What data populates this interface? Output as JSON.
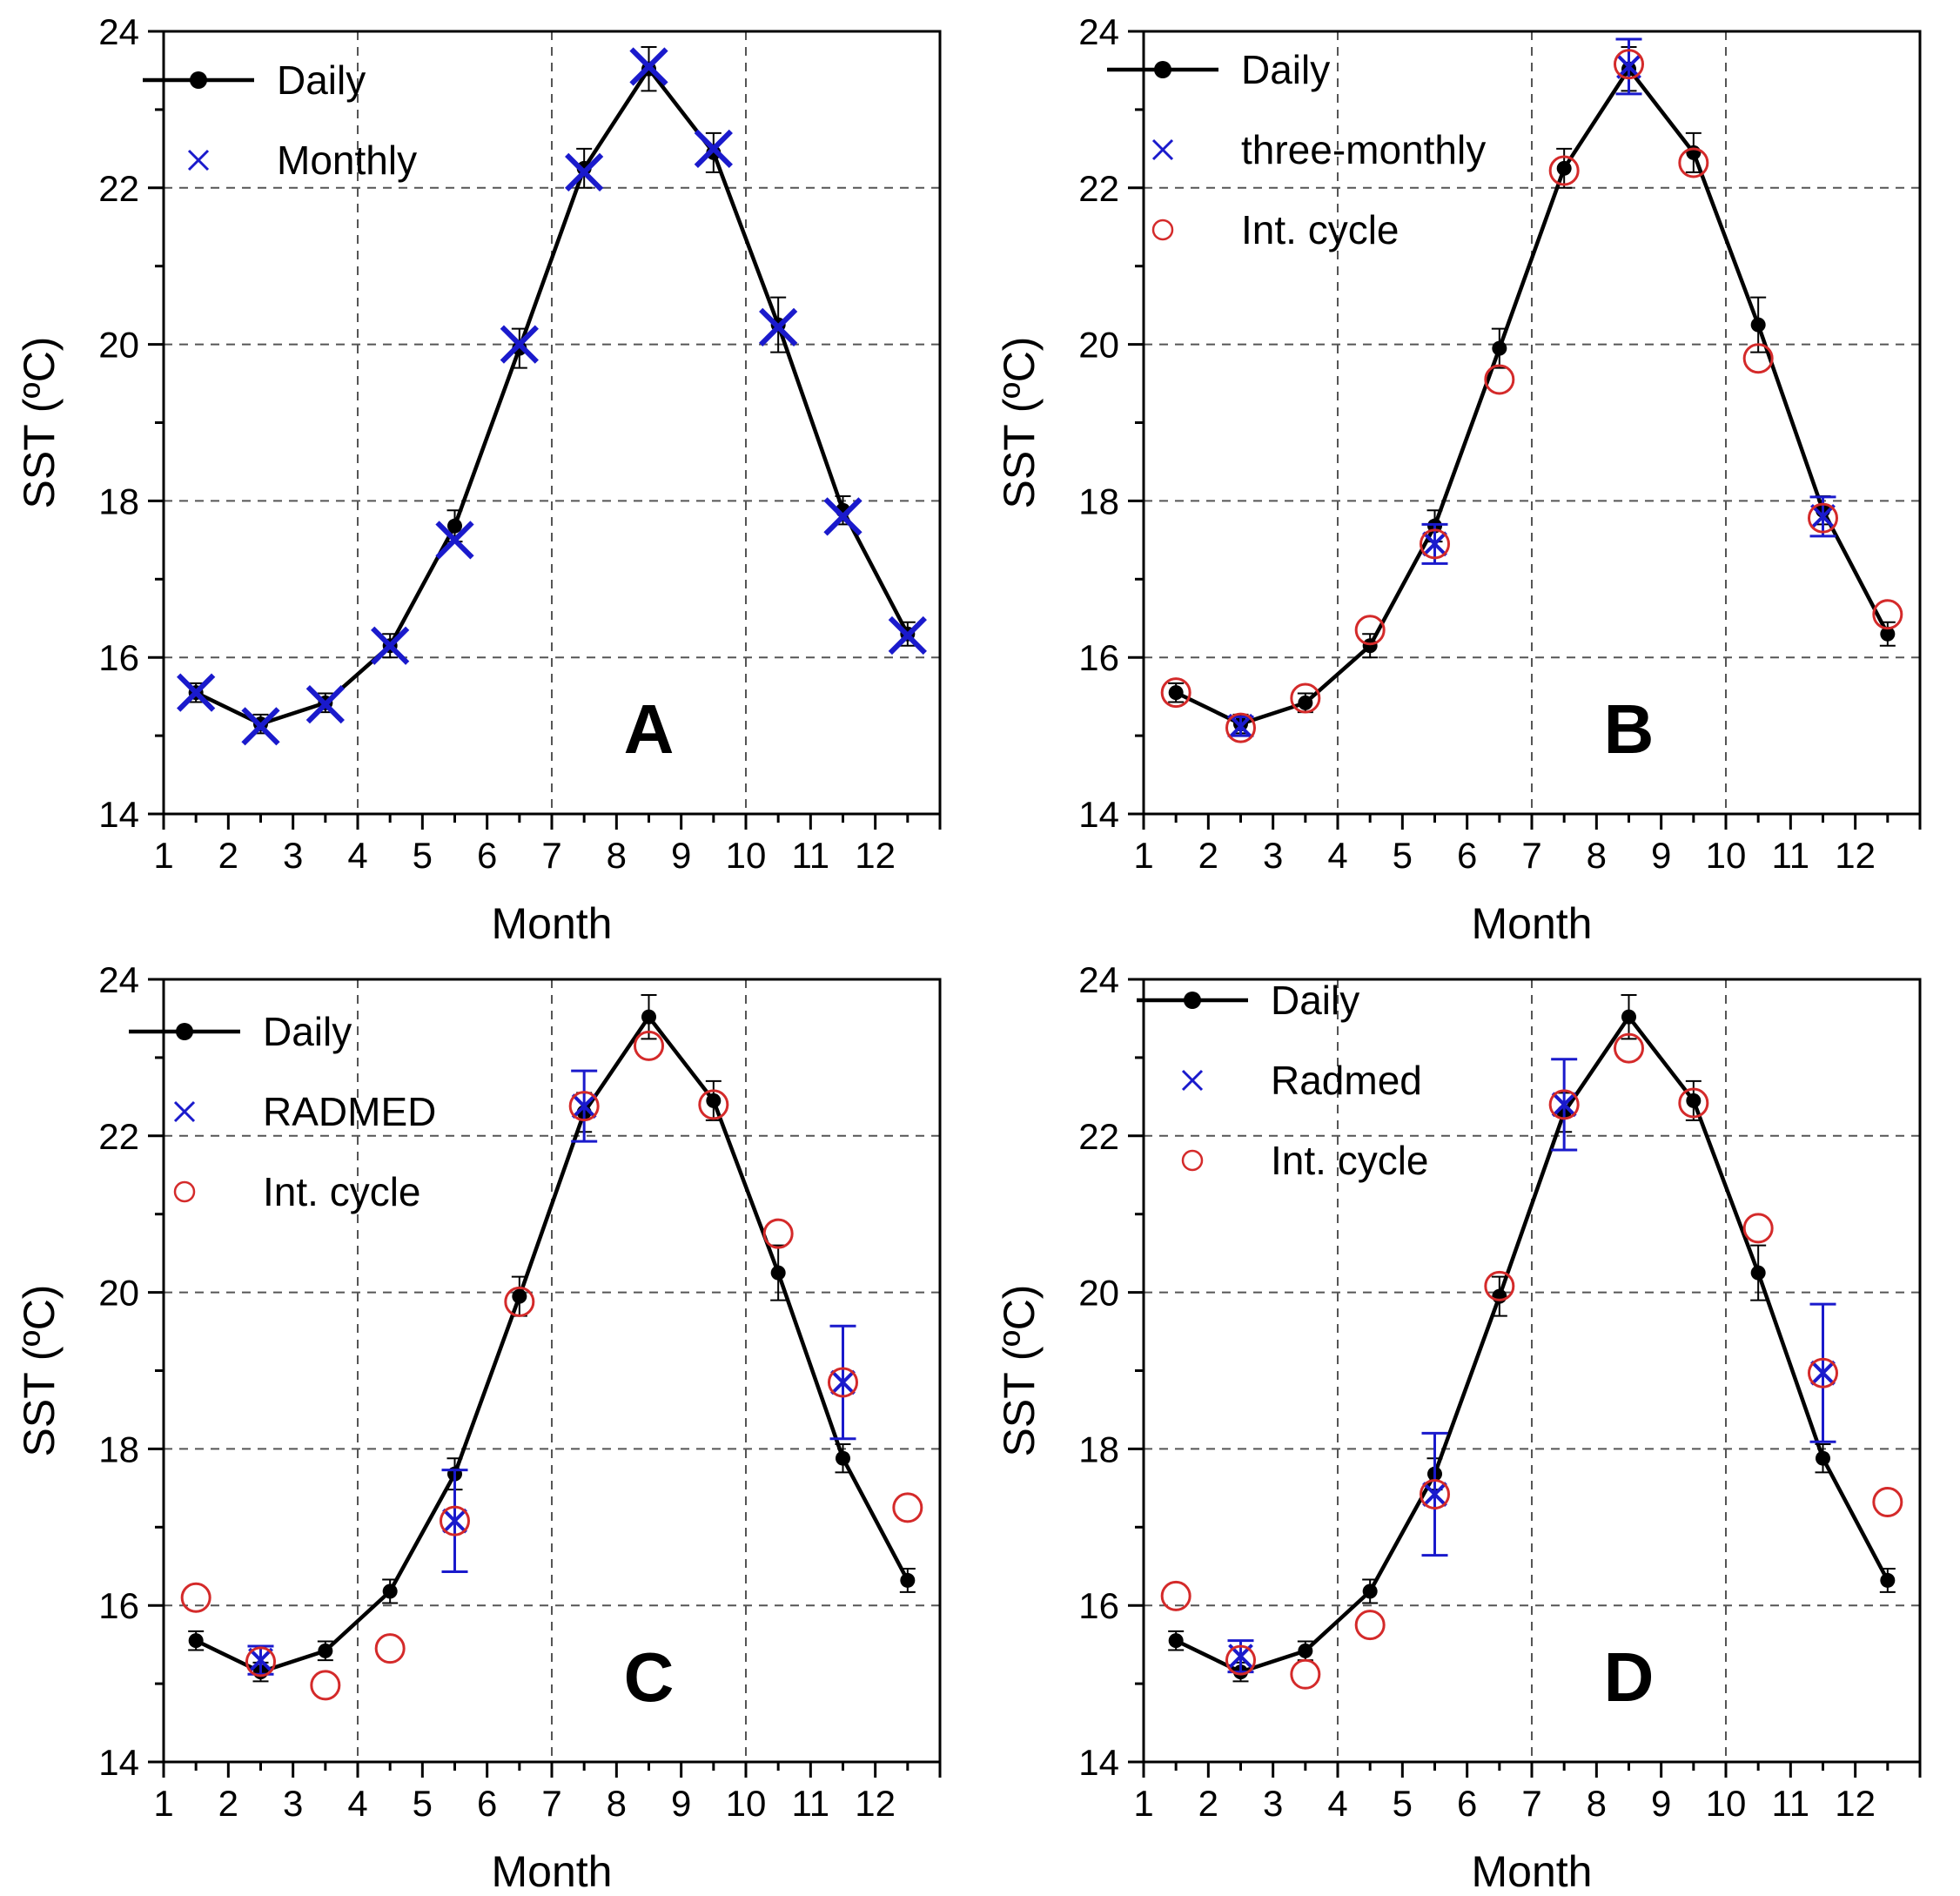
{
  "colors": {
    "daily": "#000000",
    "blue": "#1a1acc",
    "red": "#d42a2a",
    "grid": "#555555"
  },
  "chart_data": [
    {
      "type": "line",
      "panel_letter": "A",
      "xlabel": "Month",
      "ylabel": "SST (ºC)",
      "xlim": [
        1,
        13
      ],
      "ylim": [
        14,
        24
      ],
      "xticks": [
        "1",
        "2",
        "3",
        "4",
        "5",
        "6",
        "7",
        "8",
        "9",
        "10",
        "11",
        "12"
      ],
      "yticks": [
        "14",
        "16",
        "18",
        "20",
        "22",
        "24"
      ],
      "grid": "dashed at x=4,7,10 and y=16,18,20,22",
      "legend_position": "top-left",
      "series": [
        {
          "name": "Daily",
          "marker": "dot-line",
          "x": [
            1.5,
            2.5,
            3.5,
            4.5,
            5.5,
            6.5,
            7.5,
            8.5,
            9.5,
            10.5,
            11.5,
            12.5
          ],
          "y": [
            15.55,
            15.15,
            15.42,
            16.15,
            17.68,
            19.95,
            22.25,
            23.52,
            22.45,
            20.25,
            17.88,
            16.3
          ],
          "err": [
            0.12,
            0.12,
            0.12,
            0.15,
            0.2,
            0.25,
            0.25,
            0.28,
            0.25,
            0.35,
            0.18,
            0.15
          ]
        },
        {
          "name": "Monthly",
          "marker": "x",
          "x": [
            1.5,
            2.5,
            3.5,
            4.5,
            5.5,
            6.5,
            7.5,
            8.5,
            9.5,
            10.5,
            11.5,
            12.5
          ],
          "y": [
            15.55,
            15.12,
            15.4,
            16.15,
            17.5,
            20.0,
            22.2,
            23.55,
            22.5,
            20.22,
            17.8,
            16.28
          ]
        }
      ]
    },
    {
      "type": "line",
      "panel_letter": "B",
      "xlabel": "Month",
      "ylabel": "SST (ºC)",
      "xlim": [
        1,
        13
      ],
      "ylim": [
        14,
        24
      ],
      "xticks": [
        "1",
        "2",
        "3",
        "4",
        "5",
        "6",
        "7",
        "8",
        "9",
        "10",
        "11",
        "12"
      ],
      "yticks": [
        "14",
        "16",
        "18",
        "20",
        "22",
        "24"
      ],
      "grid": "dashed at x=4,7,10 and y=16,18,20,22",
      "legend_position": "top-left",
      "series": [
        {
          "name": "Daily",
          "marker": "dot-line",
          "x": [
            1.5,
            2.5,
            3.5,
            4.5,
            5.5,
            6.5,
            7.5,
            8.5,
            9.5,
            10.5,
            11.5,
            12.5
          ],
          "y": [
            15.55,
            15.15,
            15.42,
            16.15,
            17.68,
            19.95,
            22.25,
            23.52,
            22.45,
            20.25,
            17.88,
            16.3
          ],
          "err": [
            0.12,
            0.12,
            0.12,
            0.15,
            0.2,
            0.25,
            0.25,
            0.28,
            0.25,
            0.35,
            0.18,
            0.15
          ]
        },
        {
          "name": "three-monthly",
          "marker": "x",
          "x": [
            2.5,
            5.5,
            8.5,
            11.5
          ],
          "y": [
            15.12,
            17.45,
            23.55,
            17.8
          ],
          "err": [
            0.12,
            0.25,
            0.35,
            0.25
          ]
        },
        {
          "name": "Int. cycle",
          "marker": "circle",
          "x": [
            1.5,
            2.5,
            3.5,
            4.5,
            5.5,
            6.5,
            7.5,
            8.5,
            9.5,
            10.5,
            11.5,
            12.5
          ],
          "y": [
            15.55,
            15.1,
            15.48,
            16.35,
            17.45,
            19.55,
            22.22,
            23.58,
            22.32,
            19.82,
            17.78,
            16.55
          ]
        }
      ]
    },
    {
      "type": "line",
      "panel_letter": "C",
      "xlabel": "Month",
      "ylabel": "SST (ºC)",
      "xlim": [
        1,
        13
      ],
      "ylim": [
        14,
        24
      ],
      "xticks": [
        "1",
        "2",
        "3",
        "4",
        "5",
        "6",
        "7",
        "8",
        "9",
        "10",
        "11",
        "12"
      ],
      "yticks": [
        "14",
        "16",
        "18",
        "20",
        "22",
        "24"
      ],
      "grid": "dashed at x=4,7,10 and y=16,18,20,22",
      "legend_position": "top-left",
      "series": [
        {
          "name": "Daily",
          "marker": "dot-line",
          "x": [
            1.5,
            2.5,
            3.5,
            4.5,
            5.5,
            6.5,
            7.5,
            8.5,
            9.5,
            10.5,
            11.5,
            12.5
          ],
          "y": [
            15.55,
            15.15,
            15.42,
            16.18,
            17.68,
            19.95,
            22.3,
            23.52,
            22.45,
            20.25,
            17.88,
            16.32
          ],
          "err": [
            0.12,
            0.12,
            0.12,
            0.15,
            0.2,
            0.25,
            0.25,
            0.28,
            0.25,
            0.35,
            0.18,
            0.15
          ]
        },
        {
          "name": "RADMED",
          "marker": "x",
          "x": [
            2.5,
            5.5,
            7.5,
            11.5
          ],
          "y": [
            15.3,
            17.08,
            22.38,
            18.85
          ],
          "err": [
            0.18,
            0.65,
            0.45,
            0.72
          ]
        },
        {
          "name": "Int. cycle",
          "marker": "circle",
          "x": [
            1.5,
            2.5,
            3.5,
            4.5,
            5.5,
            6.5,
            7.5,
            8.5,
            9.5,
            10.5,
            11.5,
            12.5
          ],
          "y": [
            16.1,
            15.28,
            14.98,
            15.45,
            17.08,
            19.88,
            22.38,
            23.15,
            22.4,
            20.75,
            18.85,
            17.25
          ]
        }
      ]
    },
    {
      "type": "line",
      "panel_letter": "D",
      "xlabel": "Month",
      "ylabel": "SST (ºC)",
      "xlim": [
        1,
        13
      ],
      "ylim": [
        14,
        24
      ],
      "xticks": [
        "1",
        "2",
        "3",
        "4",
        "5",
        "6",
        "7",
        "8",
        "9",
        "10",
        "11",
        "12"
      ],
      "yticks": [
        "14",
        "16",
        "18",
        "20",
        "22",
        "24"
      ],
      "grid": "dashed at x=4,7,10 and y=16,18,20,22",
      "legend_position": "top-left",
      "series": [
        {
          "name": "Daily",
          "marker": "dot-line",
          "x": [
            1.5,
            2.5,
            3.5,
            4.5,
            5.5,
            6.5,
            7.5,
            8.5,
            9.5,
            10.5,
            11.5,
            12.5
          ],
          "y": [
            15.55,
            15.15,
            15.42,
            16.18,
            17.68,
            19.95,
            22.3,
            23.52,
            22.45,
            20.25,
            17.88,
            16.32
          ],
          "err": [
            0.12,
            0.12,
            0.12,
            0.15,
            0.2,
            0.25,
            0.25,
            0.28,
            0.25,
            0.35,
            0.18,
            0.15
          ]
        },
        {
          "name": "Radmed",
          "marker": "x",
          "x": [
            2.5,
            5.5,
            7.5,
            11.5
          ],
          "y": [
            15.35,
            17.42,
            22.4,
            18.97
          ],
          "err": [
            0.2,
            0.78,
            0.58,
            0.88
          ]
        },
        {
          "name": "Int. cycle",
          "marker": "circle",
          "x": [
            1.5,
            2.5,
            3.5,
            4.5,
            5.5,
            6.5,
            7.5,
            8.5,
            9.5,
            10.5,
            11.5,
            12.5
          ],
          "y": [
            16.12,
            15.3,
            15.12,
            15.75,
            17.42,
            20.08,
            22.4,
            23.12,
            22.42,
            20.82,
            18.97,
            17.32
          ]
        }
      ]
    }
  ]
}
